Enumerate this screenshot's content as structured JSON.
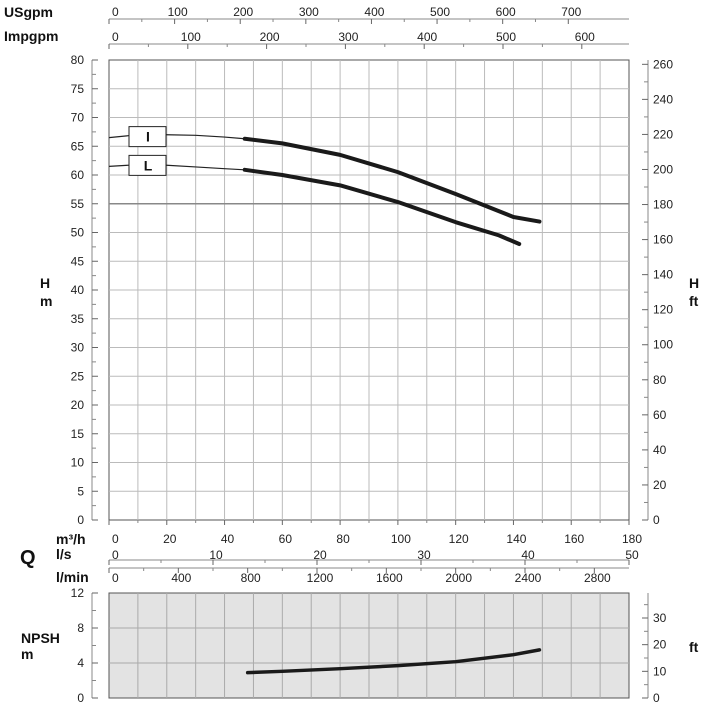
{
  "chart_data": [
    {
      "type": "line",
      "panel": "head",
      "x_unit": "m3/h",
      "xlim": [
        0,
        180
      ],
      "ylim": [
        0,
        80
      ],
      "grid": true,
      "left_axis": {
        "labels": [
          "H",
          "m"
        ],
        "ticks": [
          0,
          5,
          10,
          15,
          20,
          25,
          30,
          35,
          40,
          45,
          50,
          55,
          60,
          65,
          70,
          75,
          80
        ]
      },
      "right_axis": {
        "labels": [
          "H",
          "ft"
        ],
        "ticks": [
          0,
          20,
          40,
          60,
          80,
          100,
          120,
          140,
          160,
          180,
          200,
          220,
          240,
          260
        ],
        "feet_per_meter": 3.28084
      },
      "reference_line_y": 55,
      "series": [
        {
          "name": "I",
          "x": [
            0,
            10,
            20,
            30,
            40,
            47,
            60,
            80,
            100,
            120,
            140,
            149
          ],
          "y": [
            66.5,
            67,
            67,
            66.9,
            66.6,
            66.3,
            65.5,
            63.5,
            60.5,
            56.7,
            52.7,
            51.9
          ]
        },
        {
          "name": "L",
          "x": [
            0,
            10,
            20,
            30,
            40,
            47,
            60,
            80,
            100,
            120,
            135,
            142
          ],
          "y": [
            61.5,
            61.8,
            61.7,
            61.4,
            61.1,
            60.9,
            60.0,
            58.2,
            55.3,
            51.8,
            49.5,
            48.0
          ]
        }
      ]
    },
    {
      "type": "line",
      "panel": "npsh",
      "xlim": [
        0,
        180
      ],
      "ylim": [
        0,
        12
      ],
      "grid": true,
      "left_axis": {
        "labels": [
          "NPSH",
          "m"
        ],
        "ticks": [
          0,
          4,
          8,
          12
        ]
      },
      "right_axis": {
        "labels": [
          "ft"
        ],
        "ticks": [
          0,
          10,
          20,
          30
        ],
        "feet_per_meter": 3.28084
      },
      "series": [
        {
          "x": [
            48,
            60,
            80,
            100,
            120,
            140,
            149
          ],
          "y": [
            2.9,
            3.05,
            3.35,
            3.7,
            4.15,
            4.95,
            5.5
          ]
        }
      ]
    }
  ],
  "flow_axes": {
    "q_label": "Q",
    "usgpm": {
      "label": "USgpm",
      "ticks": [
        0,
        100,
        200,
        300,
        400,
        500,
        600,
        700
      ],
      "m3h_per_unit": 0.22712
    },
    "impgpm": {
      "label": "Impgpm",
      "ticks": [
        0,
        100,
        200,
        300,
        400,
        500,
        600
      ],
      "m3h_per_unit": 0.27277
    },
    "m3h": {
      "label": "m³/h",
      "ticks": [
        0,
        20,
        40,
        60,
        80,
        100,
        120,
        140,
        160,
        180
      ]
    },
    "ls": {
      "label": "l/s",
      "ticks": [
        0,
        10,
        20,
        30,
        40,
        50
      ],
      "m3h_per_unit": 3.6
    },
    "lmin": {
      "label": "l/min",
      "ticks": [
        0,
        400,
        800,
        1200,
        1600,
        2000,
        2400,
        2800
      ],
      "m3h_per_unit": 0.06
    }
  }
}
